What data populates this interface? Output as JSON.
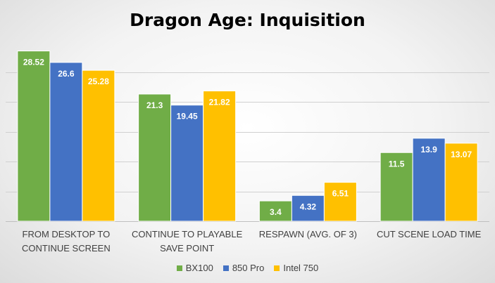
{
  "chart_data": {
    "type": "bar",
    "title": "Dragon Age: Inquisition",
    "xlabel": "",
    "ylabel": "",
    "categories": [
      [
        "FROM DESKTOP TO",
        "CONTINUE SCREEN"
      ],
      [
        "CONTINUE TO PLAYABLE",
        "SAVE POINT"
      ],
      [
        "RESPAWN (AVG. OF 3)"
      ],
      [
        "CUT SCENE LOAD TIME"
      ]
    ],
    "series": [
      {
        "name": "BX100",
        "color": "#70AD47",
        "values": [
          28.52,
          21.3,
          3.4,
          11.5
        ]
      },
      {
        "name": "850 Pro",
        "color": "#4472C4",
        "values": [
          26.6,
          19.45,
          4.32,
          13.9
        ]
      },
      {
        "name": "Intel 750",
        "color": "#FFC000",
        "values": [
          25.28,
          21.82,
          6.51,
          13.07
        ]
      }
    ],
    "data_labels": [
      [
        "28.52",
        "21.3",
        "3.4",
        "11.5"
      ],
      [
        "26.6",
        "19.45",
        "4.32",
        "13.9"
      ],
      [
        "25.28",
        "21.82",
        "6.51",
        "13.07"
      ]
    ],
    "ylim": [
      0,
      30
    ],
    "grid": true,
    "legend_position": "bottom"
  }
}
